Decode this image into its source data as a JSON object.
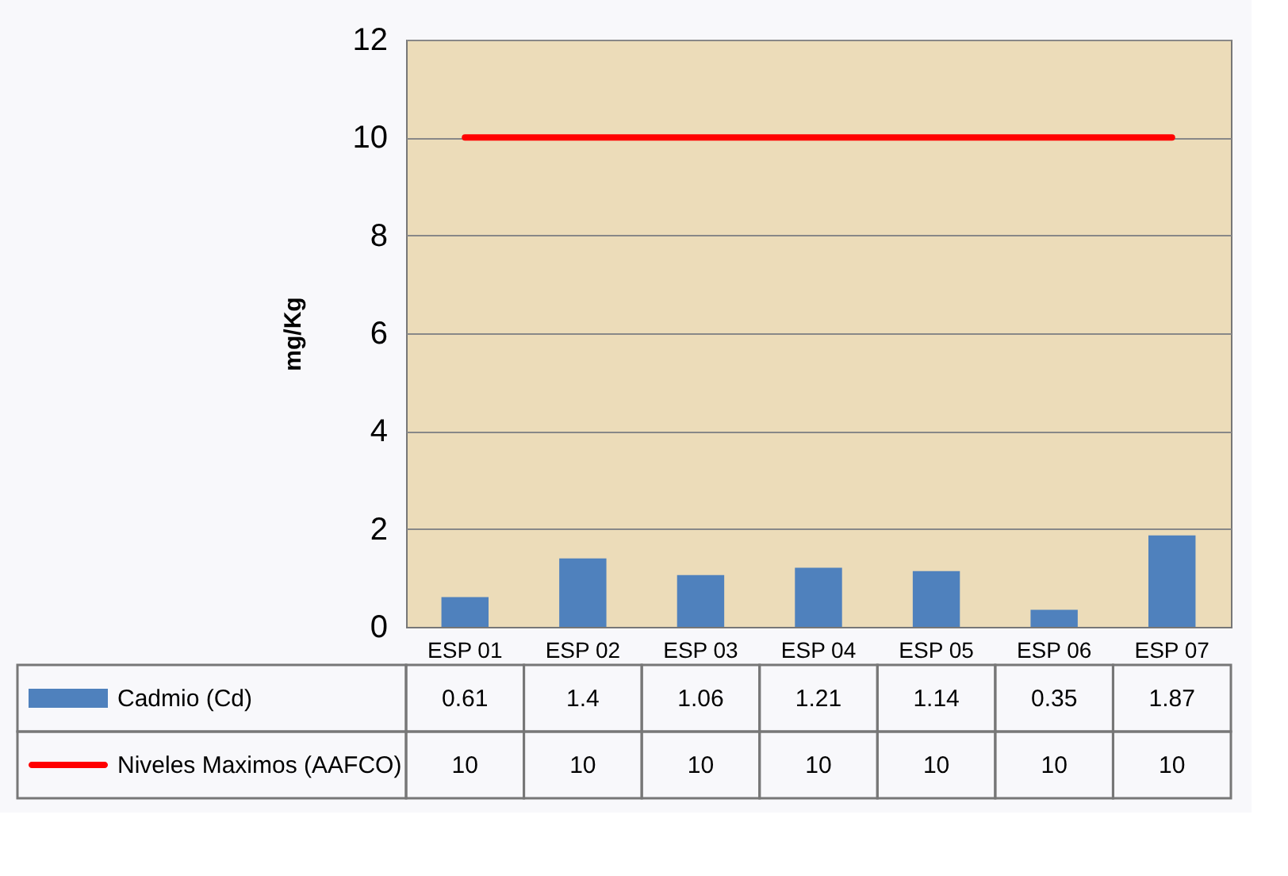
{
  "chart_data": {
    "type": "bar",
    "ylabel": "mg/Kg",
    "categories": [
      "ESP 01",
      "ESP 02",
      "ESP 03",
      "ESP 04",
      "ESP 05",
      "ESP 06",
      "ESP 07"
    ],
    "series": [
      {
        "name": "Cadmio (Cd)",
        "color": "#4f81bd",
        "values": [
          0.61,
          1.4,
          1.06,
          1.21,
          1.14,
          0.35,
          1.87
        ]
      },
      {
        "name": "Niveles Maximos (AAFCO)",
        "type": "line",
        "color": "#ff0000",
        "values": [
          10,
          10,
          10,
          10,
          10,
          10,
          10
        ]
      }
    ],
    "ylim": [
      0,
      12
    ],
    "yticks": [
      0,
      2,
      4,
      6,
      8,
      10,
      12
    ],
    "grid": "y",
    "legend": "bottom",
    "data_labels": true
  }
}
